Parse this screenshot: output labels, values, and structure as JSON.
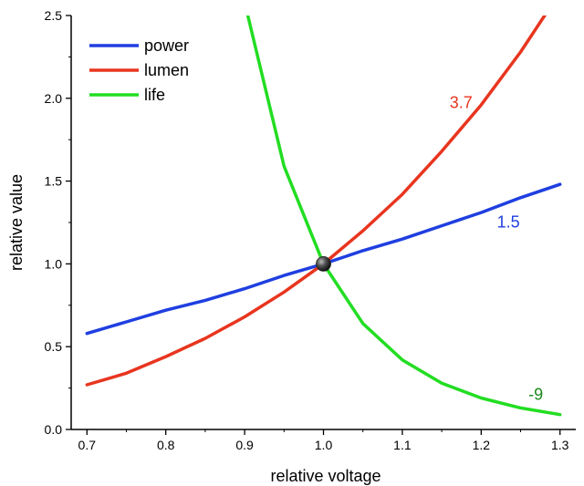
{
  "chart_data": {
    "type": "line",
    "xlabel": "relative voltage",
    "ylabel": "relative value",
    "xlim": [
      0.68,
      1.32
    ],
    "ylim": [
      0.0,
      2.5
    ],
    "x_ticks": [
      "0.7",
      "0.8",
      "0.9",
      "1.0",
      "1.1",
      "1.2",
      "1.3"
    ],
    "y_ticks": [
      "0.0",
      "0.5",
      "1.0",
      "1.5",
      "2.0",
      "2.5"
    ],
    "x_tick_values": [
      0.7,
      0.8,
      0.9,
      1.0,
      1.1,
      1.2,
      1.3
    ],
    "y_tick_values": [
      0.0,
      0.5,
      1.0,
      1.5,
      2.0,
      2.5
    ],
    "grid": false,
    "legend_position": "top-left",
    "series": [
      {
        "name": "power",
        "color": "#1f3fe0",
        "exponent": 1.5,
        "x": [
          0.7,
          0.75,
          0.8,
          0.85,
          0.9,
          0.95,
          1.0,
          1.05,
          1.1,
          1.15,
          1.2,
          1.25,
          1.3
        ],
        "y": [
          0.58,
          0.65,
          0.72,
          0.78,
          0.85,
          0.93,
          1.0,
          1.08,
          1.15,
          1.23,
          1.31,
          1.4,
          1.48
        ]
      },
      {
        "name": "lumen",
        "color": "#e8351f",
        "exponent": 3.7,
        "x": [
          0.7,
          0.75,
          0.8,
          0.85,
          0.9,
          0.95,
          1.0,
          1.05,
          1.1,
          1.15,
          1.2,
          1.25,
          1.3
        ],
        "y": [
          0.27,
          0.34,
          0.44,
          0.55,
          0.68,
          0.83,
          1.0,
          1.2,
          1.42,
          1.68,
          1.96,
          2.28,
          2.64
        ]
      },
      {
        "name": "life",
        "color": "#22dd22",
        "exponent": -9,
        "x": [
          0.9,
          0.95,
          1.0,
          1.05,
          1.1,
          1.15,
          1.2,
          1.25,
          1.3
        ],
        "y": [
          2.58,
          1.59,
          1.0,
          0.64,
          0.42,
          0.28,
          0.19,
          0.13,
          0.09
        ]
      }
    ],
    "annotations": [
      {
        "text": "3.7",
        "x": 1.16,
        "y": 1.94,
        "color": "#e8351f"
      },
      {
        "text": "1.5",
        "x": 1.22,
        "y": 1.22,
        "color": "#1f3fe0"
      },
      {
        "text": "-9",
        "x": 1.26,
        "y": 0.18,
        "color": "#1a8a1a"
      }
    ],
    "marker_point": {
      "x": 1.0,
      "y": 1.0
    }
  }
}
